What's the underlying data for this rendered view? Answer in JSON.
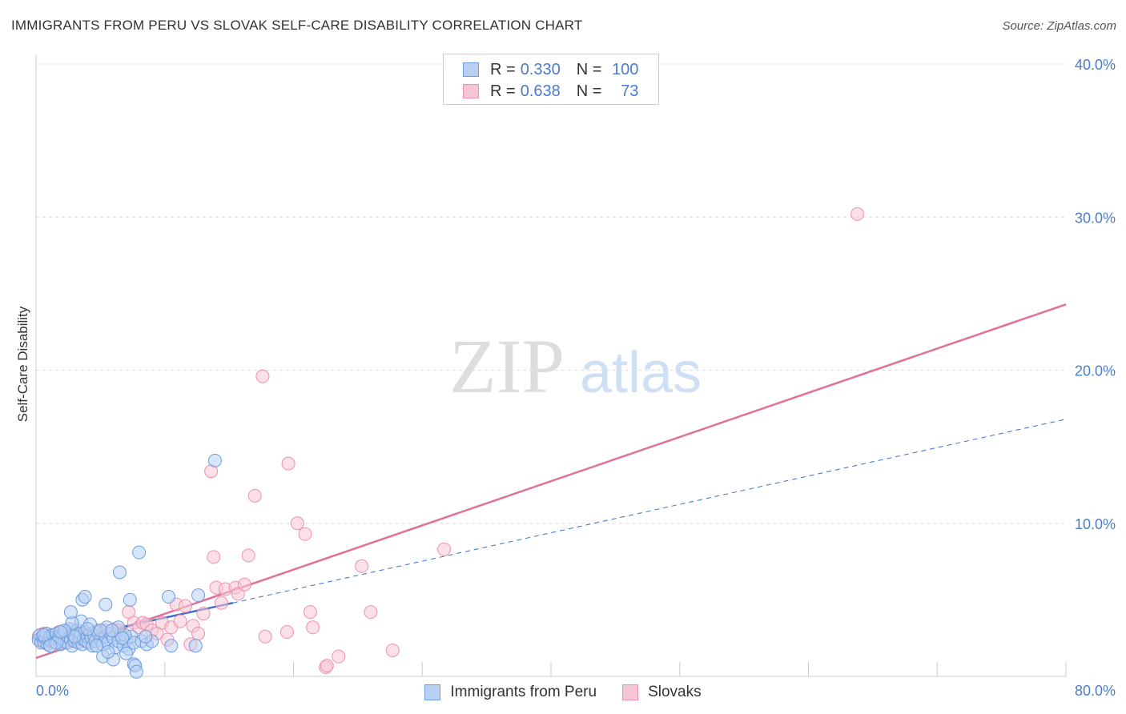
{
  "title": "IMMIGRANTS FROM PERU VS SLOVAK SELF-CARE DISABILITY CORRELATION CHART",
  "source": "Source: ZipAtlas.com",
  "watermark": {
    "zip": "ZIP",
    "atlas": "atlas"
  },
  "colors": {
    "blue": "#6b9ee0",
    "blue_fill": "#b9d0f2",
    "blue_line": "#3a6fc9",
    "pink": "#ee8fb0",
    "pink_fill": "#f7c6d6",
    "pink_line": "#e0719a",
    "grid": "#dddddd",
    "axis_label": "#4a7cc9"
  },
  "legend": {
    "rows": [
      {
        "r_label": "R =",
        "r_value": "0.330",
        "n_label": "N =",
        "n_value": "100",
        "series": "blue"
      },
      {
        "r_label": "R =",
        "r_value": "0.638",
        "n_label": "N =",
        "n_value": "73",
        "series": "pink"
      }
    ]
  },
  "bottom_legend": [
    {
      "label": "Immigrants from Peru",
      "series": "blue"
    },
    {
      "label": "Slovaks",
      "series": "pink"
    }
  ],
  "chart_data": {
    "type": "scatter",
    "title": "IMMIGRANTS FROM PERU VS SLOVAK SELF-CARE DISABILITY CORRELATION CHART",
    "xlabel": "",
    "ylabel": "Self-Care Disability",
    "xlim": [
      0,
      80
    ],
    "ylim": [
      0,
      40
    ],
    "x_tick_labels": [
      "0.0%",
      "80.0%"
    ],
    "y_ticks": [
      10,
      20,
      30,
      40
    ],
    "y_tick_labels": [
      "10.0%",
      "20.0%",
      "30.0%",
      "40.0%"
    ],
    "grid": true,
    "legend_position": "top-center",
    "series": [
      {
        "name": "Immigrants from Peru",
        "color": "#6b9ee0",
        "points": [
          [
            0.2,
            2.4
          ],
          [
            0.3,
            2.7
          ],
          [
            0.4,
            2.2
          ],
          [
            0.5,
            2.6
          ],
          [
            0.6,
            2.3
          ],
          [
            0.7,
            2.5
          ],
          [
            0.8,
            2.8
          ],
          [
            0.9,
            2.1
          ],
          [
            1.0,
            2.4
          ],
          [
            1.1,
            2.6
          ],
          [
            1.2,
            2.3
          ],
          [
            1.3,
            2.7
          ],
          [
            1.4,
            2.5
          ],
          [
            1.5,
            2.2
          ],
          [
            1.6,
            2.8
          ],
          [
            1.7,
            2.4
          ],
          [
            1.8,
            2.6
          ],
          [
            1.9,
            2.1
          ],
          [
            2.0,
            2.5
          ],
          [
            2.1,
            2.7
          ],
          [
            2.2,
            2.3
          ],
          [
            2.3,
            2.9
          ],
          [
            2.4,
            2.2
          ],
          [
            2.5,
            2.6
          ],
          [
            2.6,
            3.1
          ],
          [
            2.7,
            2.4
          ],
          [
            2.8,
            2.0
          ],
          [
            2.9,
            2.7
          ],
          [
            3.0,
            2.3
          ],
          [
            3.1,
            2.5
          ],
          [
            3.2,
            3.0
          ],
          [
            3.3,
            2.2
          ],
          [
            3.4,
            2.6
          ],
          [
            3.5,
            2.8
          ],
          [
            3.6,
            2.1
          ],
          [
            3.7,
            2.4
          ],
          [
            3.8,
            2.9
          ],
          [
            3.9,
            2.3
          ],
          [
            4.0,
            2.6
          ],
          [
            4.1,
            2.2
          ],
          [
            4.2,
            2.8
          ],
          [
            4.3,
            2.5
          ],
          [
            4.4,
            2.0
          ],
          [
            4.5,
            2.7
          ],
          [
            4.6,
            2.3
          ],
          [
            4.8,
            2.9
          ],
          [
            5.0,
            2.4
          ],
          [
            5.2,
            2.1
          ],
          [
            5.4,
            2.6
          ],
          [
            5.6,
            2.2
          ],
          [
            5.8,
            2.8
          ],
          [
            6.0,
            2.5
          ],
          [
            6.2,
            1.9
          ],
          [
            6.4,
            2.3
          ],
          [
            6.6,
            2.7
          ],
          [
            6.8,
            2.0
          ],
          [
            7.0,
            2.4
          ],
          [
            7.2,
            1.8
          ],
          [
            7.4,
            2.6
          ],
          [
            7.6,
            2.2
          ],
          [
            3.5,
            3.6
          ],
          [
            4.2,
            3.4
          ],
          [
            2.8,
            3.5
          ],
          [
            5.5,
            3.2
          ],
          [
            5.0,
            3.0
          ],
          [
            4.0,
            3.1
          ],
          [
            2.7,
            4.2
          ],
          [
            3.6,
            5.0
          ],
          [
            3.8,
            5.2
          ],
          [
            5.4,
            4.7
          ],
          [
            6.5,
            6.8
          ],
          [
            7.3,
            5.0
          ],
          [
            8.0,
            8.1
          ],
          [
            8.2,
            2.3
          ],
          [
            8.6,
            2.1
          ],
          [
            9.0,
            2.3
          ],
          [
            10.3,
            5.2
          ],
          [
            10.5,
            2.0
          ],
          [
            12.6,
            5.3
          ],
          [
            12.4,
            2.0
          ],
          [
            13.9,
            14.1
          ],
          [
            5.2,
            1.3
          ],
          [
            6.0,
            1.1
          ],
          [
            7.0,
            1.5
          ],
          [
            7.6,
            0.8
          ],
          [
            7.7,
            0.7
          ],
          [
            7.8,
            0.3
          ],
          [
            5.6,
            1.6
          ],
          [
            6.9,
            2.7
          ],
          [
            6.4,
            3.2
          ],
          [
            1.6,
            2.2
          ],
          [
            2.2,
            3.0
          ],
          [
            3.0,
            2.6
          ],
          [
            4.7,
            2.0
          ],
          [
            5.9,
            3.0
          ],
          [
            6.7,
            2.5
          ],
          [
            8.5,
            2.6
          ],
          [
            1.1,
            2.0
          ],
          [
            0.6,
            2.7
          ],
          [
            1.9,
            2.9
          ]
        ],
        "trendline": {
          "x": [
            0,
            15.3
          ],
          "y": [
            2.0,
            4.8
          ],
          "dashed_extension": {
            "x": [
              15.3,
              80
            ],
            "y": [
              4.8,
              16.8
            ]
          }
        }
      },
      {
        "name": "Slovaks",
        "color": "#ee8fb0",
        "points": [
          [
            0.2,
            2.6
          ],
          [
            0.4,
            2.3
          ],
          [
            0.6,
            2.8
          ],
          [
            0.8,
            2.2
          ],
          [
            1.0,
            2.5
          ],
          [
            1.2,
            2.7
          ],
          [
            1.4,
            2.3
          ],
          [
            1.6,
            2.6
          ],
          [
            1.8,
            2.9
          ],
          [
            2.0,
            2.4
          ],
          [
            2.2,
            2.8
          ],
          [
            2.4,
            2.2
          ],
          [
            2.6,
            2.6
          ],
          [
            2.8,
            3.0
          ],
          [
            3.0,
            2.4
          ],
          [
            3.2,
            2.7
          ],
          [
            3.4,
            2.3
          ],
          [
            3.6,
            2.9
          ],
          [
            3.8,
            2.5
          ],
          [
            4.0,
            2.7
          ],
          [
            4.2,
            2.2
          ],
          [
            4.4,
            2.8
          ],
          [
            4.6,
            2.5
          ],
          [
            4.8,
            3.0
          ],
          [
            5.0,
            2.6
          ],
          [
            5.3,
            3.0
          ],
          [
            5.7,
            2.8
          ],
          [
            6.1,
            3.1
          ],
          [
            6.5,
            3.0
          ],
          [
            6.9,
            2.7
          ],
          [
            7.2,
            4.2
          ],
          [
            7.6,
            3.5
          ],
          [
            8.0,
            3.2
          ],
          [
            8.3,
            3.5
          ],
          [
            8.6,
            3.4
          ],
          [
            9.0,
            3.0
          ],
          [
            9.4,
            2.8
          ],
          [
            9.8,
            3.5
          ],
          [
            10.2,
            2.4
          ],
          [
            10.5,
            3.2
          ],
          [
            10.9,
            4.7
          ],
          [
            11.2,
            3.6
          ],
          [
            11.6,
            4.6
          ],
          [
            12.2,
            3.3
          ],
          [
            12.6,
            2.8
          ],
          [
            13.0,
            4.1
          ],
          [
            13.8,
            7.8
          ],
          [
            14.0,
            5.8
          ],
          [
            14.7,
            5.7
          ],
          [
            15.5,
            5.8
          ],
          [
            15.7,
            5.4
          ],
          [
            16.2,
            6.0
          ],
          [
            16.5,
            7.9
          ],
          [
            17.0,
            11.8
          ],
          [
            17.8,
            2.6
          ],
          [
            17.6,
            19.6
          ],
          [
            19.6,
            13.9
          ],
          [
            20.3,
            10.0
          ],
          [
            20.9,
            9.3
          ],
          [
            21.3,
            4.2
          ],
          [
            21.5,
            3.2
          ],
          [
            22.5,
            0.6
          ],
          [
            22.6,
            0.7
          ],
          [
            23.5,
            1.3
          ],
          [
            25.3,
            7.2
          ],
          [
            26.0,
            4.2
          ],
          [
            27.7,
            1.7
          ],
          [
            31.7,
            8.3
          ],
          [
            13.6,
            13.4
          ],
          [
            63.8,
            30.2
          ],
          [
            19.5,
            2.9
          ],
          [
            14.4,
            4.8
          ],
          [
            12.0,
            2.1
          ]
        ],
        "trendline": {
          "x": [
            0,
            80
          ],
          "y": [
            1.2,
            24.3
          ]
        }
      }
    ]
  }
}
